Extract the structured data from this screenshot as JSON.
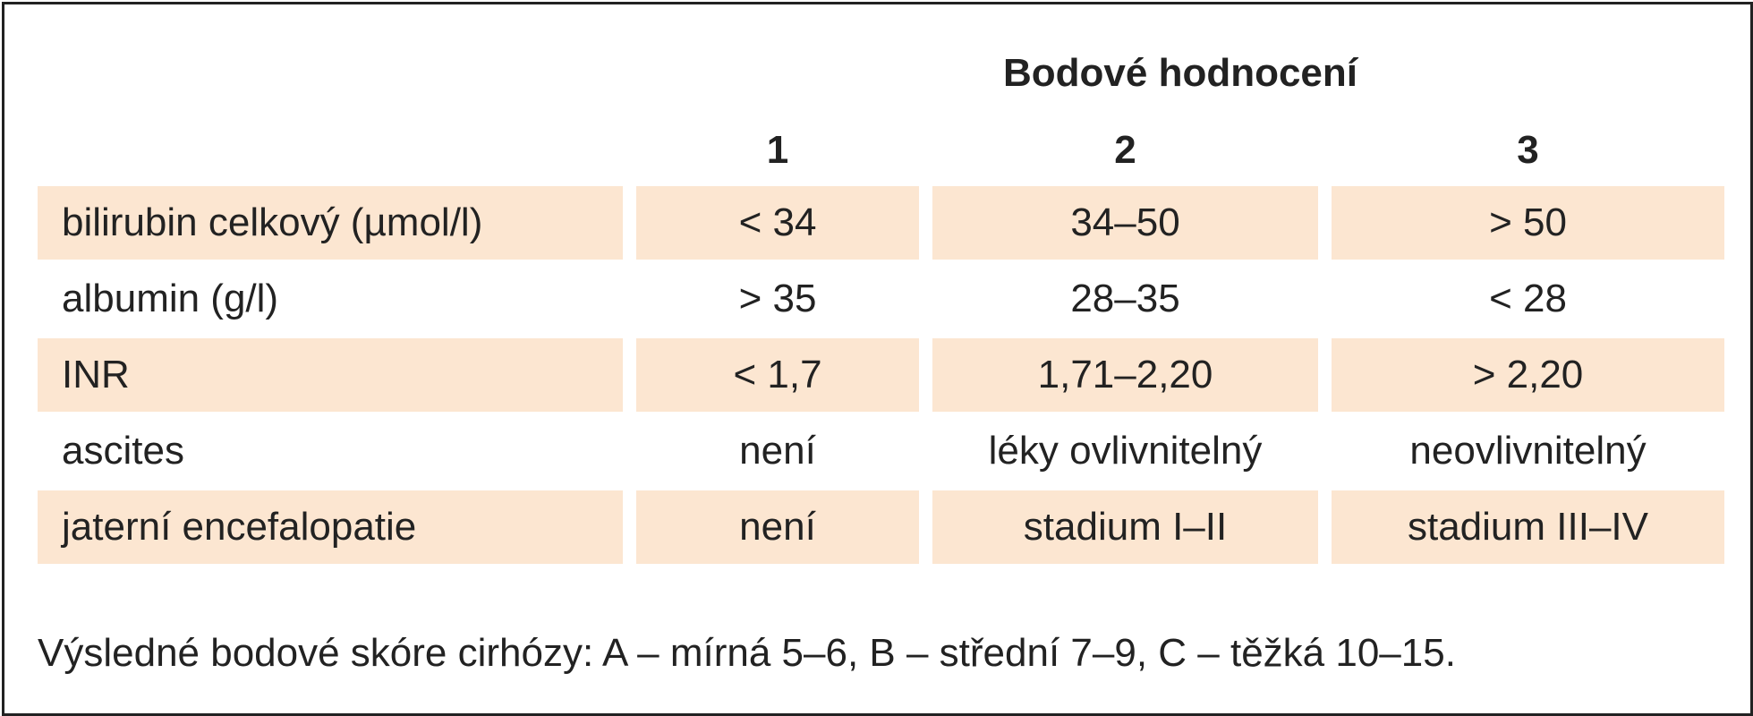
{
  "header": {
    "title": "Bodové hodnocení"
  },
  "table": {
    "columns": [
      "1",
      "2",
      "3"
    ],
    "rows": [
      [
        "bilirubin celkový (µmol/l)",
        "< 34",
        "34–50",
        "> 50"
      ],
      [
        "albumin (g/l)",
        "> 35",
        "28–35",
        "< 28"
      ],
      [
        "INR",
        "< 1,7",
        "1,71–2,20",
        "> 2,20"
      ],
      [
        "ascites",
        "není",
        "léky ovlivnitelný",
        "neovlivnitelný"
      ],
      [
        "jaterní encefalopatie",
        "není",
        "stadium I–II",
        "stadium III–IV"
      ]
    ]
  },
  "footer": "Výsledné bodové skóre cirhózy: A – mírná 5–6, B – střední 7–9, C – těžká 10–15."
}
